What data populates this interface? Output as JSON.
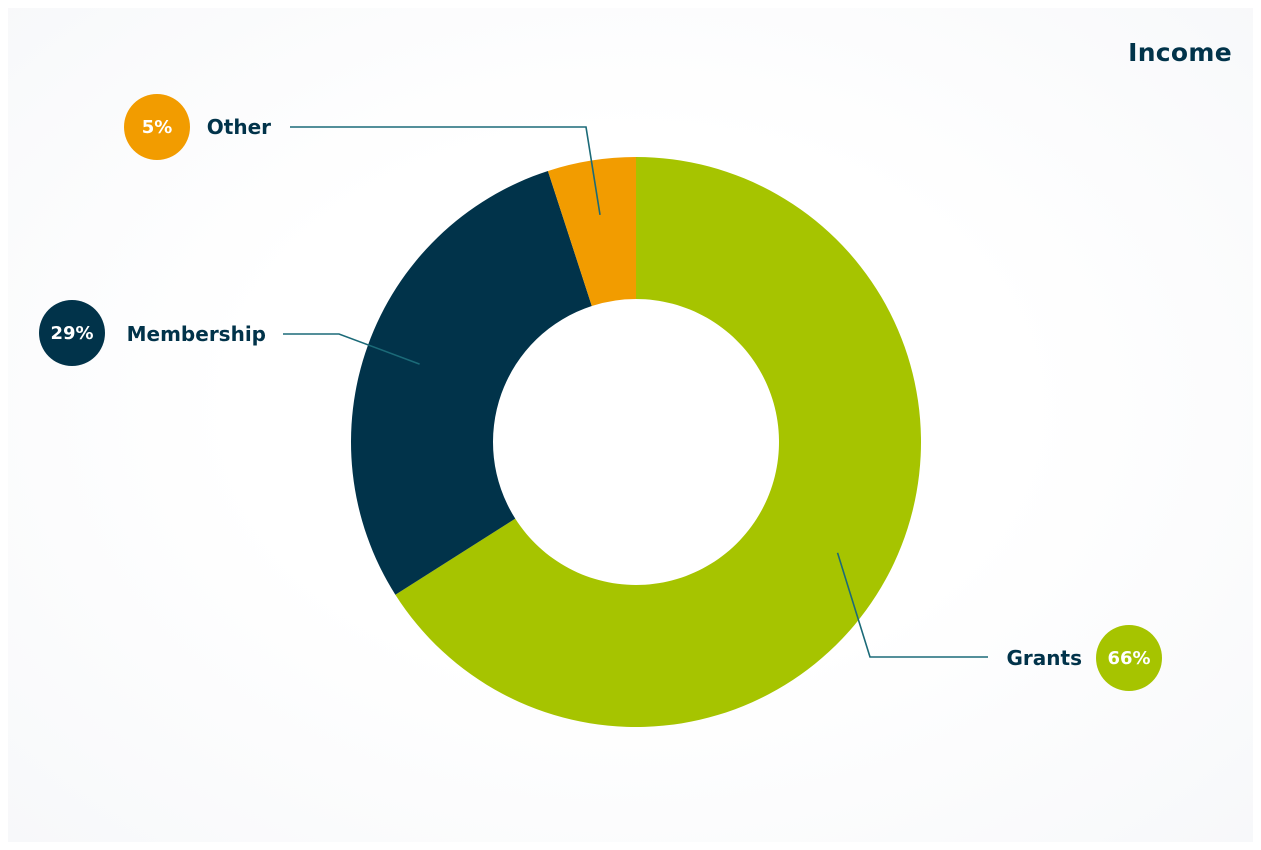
{
  "chart_data": {
    "type": "pie",
    "title": "Income",
    "donut": true,
    "legend": "callouts",
    "slices": [
      {
        "label": "Grants",
        "pct_label": "66%",
        "value": 66,
        "color": "#a6c400"
      },
      {
        "label": "Membership",
        "pct_label": "29%",
        "value": 29,
        "color": "#01334a"
      },
      {
        "label": "Other",
        "pct_label": "5%",
        "value": 5,
        "color": "#f29c00"
      }
    ],
    "leader_color": "#1b6a78"
  }
}
